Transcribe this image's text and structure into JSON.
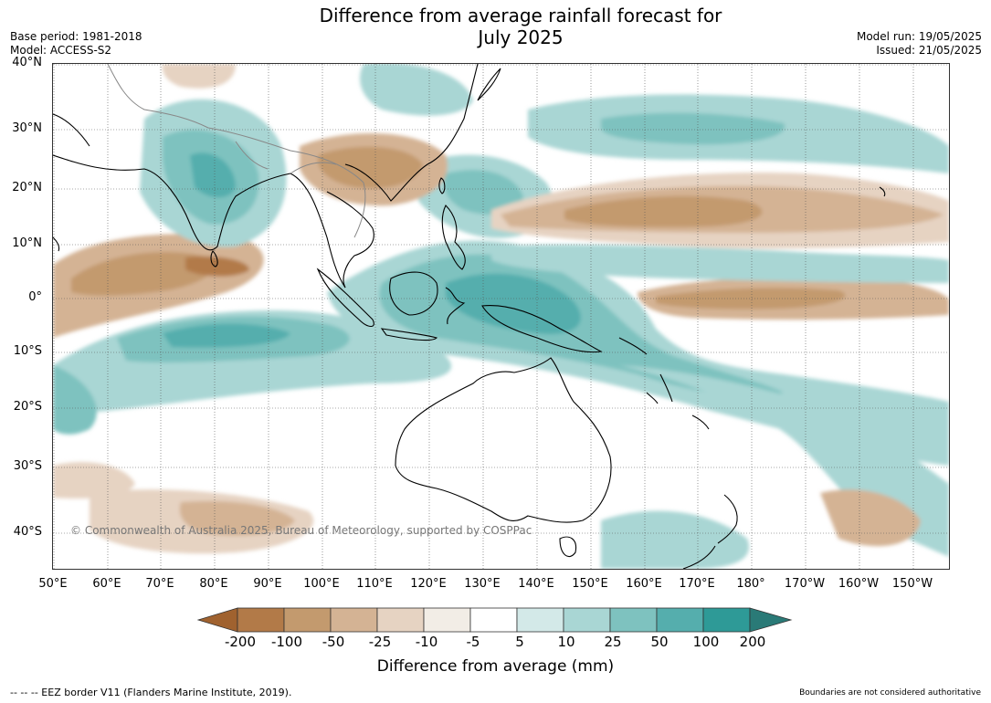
{
  "title_line1": "Difference from average rainfall forecast for",
  "title_line2": "July 2025",
  "base_period": "Base period: 1981-2018",
  "model": "Model: ACCESS-S2",
  "model_run": "Model run: 19/05/2025",
  "issued": "Issued: 21/05/2025",
  "lat_labels": [
    "40°N",
    "30°N",
    "20°N",
    "10°N",
    "0°",
    "10°S",
    "20°S",
    "30°S",
    "40°S"
  ],
  "lon_labels": [
    "50°E",
    "60°E",
    "70°E",
    "80°E",
    "90°E",
    "100°E",
    "110°E",
    "120°E",
    "130°E",
    "140°E",
    "150°E",
    "160°E",
    "170°E",
    "180°",
    "170°W",
    "160°W",
    "150°W"
  ],
  "copyright": "© Commonwealth of Australia 2025, Bureau of Meteorology, supported by COSPPac",
  "colorbar": {
    "ticks": [
      "-200",
      "-100",
      "-50",
      "-25",
      "-10",
      "-5",
      "5",
      "10",
      "25",
      "50",
      "100",
      "200"
    ],
    "colors": [
      "#a0622f",
      "#b27a48",
      "#c39a6e",
      "#d4b394",
      "#e6d3c2",
      "#f2ede6",
      "#ffffff",
      "#d3e9e8",
      "#a9d6d4",
      "#7ec2bf",
      "#55aead",
      "#2e9a97",
      "#2a7a77"
    ],
    "title": "Difference from average (mm)"
  },
  "footer_left": "--  --  -- EEZ border V11 (Flanders Marine Institute, 2019).",
  "footer_right": "Boundaries are not considered authoritative"
}
